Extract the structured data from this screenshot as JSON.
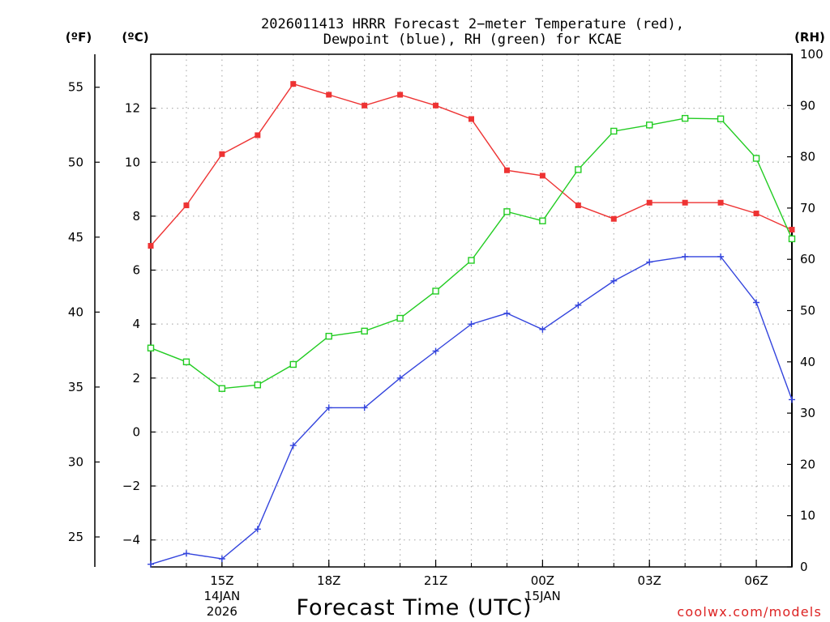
{
  "title_line1": "2026011413 HRRR Forecast 2−meter Temperature (red),",
  "title_line2": "Dewpoint (blue), RH (green) for KCAE",
  "watermark": "coolwx.com/models",
  "colors": {
    "temperature": "#ee3333",
    "dewpoint": "#3344dd",
    "rh": "#22cc22",
    "watermark": "#dd2222"
  },
  "chart_data": {
    "type": "line",
    "title": "2026011413 HRRR Forecast 2-meter Temperature (red), Dewpoint (blue), RH (green) for KCAE",
    "xlabel": "Forecast Time (UTC)",
    "x_hours": [
      13,
      14,
      15,
      16,
      17,
      18,
      19,
      20,
      21,
      22,
      23,
      24,
      25,
      26,
      27,
      28,
      29,
      30,
      31
    ],
    "xlim": [
      13,
      31
    ],
    "x_ticks": [
      {
        "hour": 15,
        "label": "15Z",
        "sub1": "14JAN",
        "sub2": "2026"
      },
      {
        "hour": 18,
        "label": "18Z"
      },
      {
        "hour": 21,
        "label": "21Z"
      },
      {
        "hour": 24,
        "label": "00Z",
        "sub1": "15JAN"
      },
      {
        "hour": 27,
        "label": "03Z"
      },
      {
        "hour": 30,
        "label": "06Z"
      }
    ],
    "left_axis_f": {
      "unit": "(ºF)",
      "ticks": [
        25,
        30,
        35,
        40,
        45,
        50,
        55
      ]
    },
    "left_axis_c": {
      "unit": "(ºC)",
      "ylim": [
        -5,
        14
      ],
      "ticks": [
        -4,
        -2,
        0,
        2,
        4,
        6,
        8,
        10,
        12
      ],
      "tick_labels": [
        "−4",
        "−2",
        "0",
        "2",
        "4",
        "6",
        "8",
        "10",
        "12"
      ]
    },
    "right_axis": {
      "unit": "(RH)",
      "ylim": [
        0,
        100
      ],
      "ticks": [
        0,
        10,
        20,
        30,
        40,
        50,
        60,
        70,
        80,
        90,
        100
      ]
    },
    "series": [
      {
        "name": "Temperature",
        "unit": "C",
        "axis": "celsius",
        "values": [
          6.9,
          8.4,
          10.3,
          11.0,
          12.9,
          12.5,
          12.1,
          12.5,
          12.1,
          11.6,
          9.7,
          9.5,
          8.4,
          7.9,
          8.5,
          8.5,
          8.5,
          8.1,
          7.5
        ]
      },
      {
        "name": "Dewpoint",
        "unit": "C",
        "axis": "celsius",
        "values": [
          -4.9,
          -4.5,
          -4.7,
          -3.6,
          -0.5,
          0.9,
          0.9,
          2.0,
          3.0,
          4.0,
          4.4,
          3.8,
          4.7,
          5.6,
          6.3,
          6.5,
          6.5,
          4.8,
          1.2
        ]
      },
      {
        "name": "RH",
        "unit": "%",
        "axis": "rh",
        "values": [
          42.7,
          40.0,
          34.8,
          35.5,
          39.5,
          45.0,
          46.0,
          48.5,
          53.8,
          59.8,
          69.3,
          67.5,
          77.5,
          85.0,
          86.2,
          87.5,
          87.4,
          79.7,
          64.0
        ]
      }
    ]
  }
}
